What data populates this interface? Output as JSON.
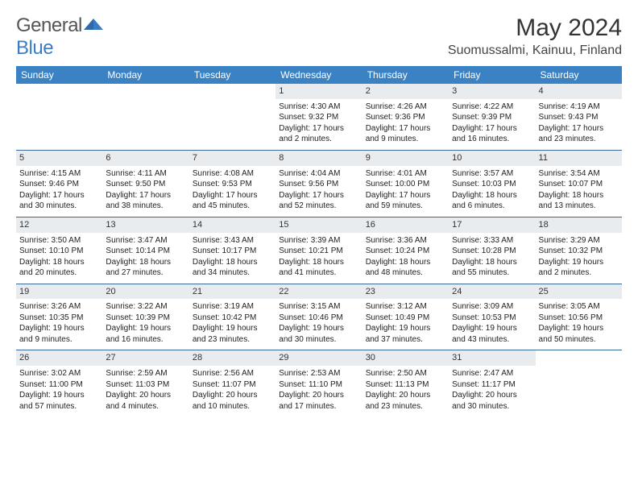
{
  "brand": {
    "name_part1": "General",
    "name_part2": "Blue",
    "logo_color": "#3b7dc4"
  },
  "title": "May 2024",
  "location": "Suomussalmi, Kainuu, Finland",
  "header_bg": "#3b82c4",
  "daynum_bg": "#e9ecef",
  "sep_color": "#3b6a9a",
  "day_headers": [
    "Sunday",
    "Monday",
    "Tuesday",
    "Wednesday",
    "Thursday",
    "Friday",
    "Saturday"
  ],
  "weeks": [
    [
      null,
      null,
      null,
      {
        "d": "1",
        "sr": "Sunrise: 4:30 AM",
        "ss": "Sunset: 9:32 PM",
        "dl": "Daylight: 17 hours and 2 minutes."
      },
      {
        "d": "2",
        "sr": "Sunrise: 4:26 AM",
        "ss": "Sunset: 9:36 PM",
        "dl": "Daylight: 17 hours and 9 minutes."
      },
      {
        "d": "3",
        "sr": "Sunrise: 4:22 AM",
        "ss": "Sunset: 9:39 PM",
        "dl": "Daylight: 17 hours and 16 minutes."
      },
      {
        "d": "4",
        "sr": "Sunrise: 4:19 AM",
        "ss": "Sunset: 9:43 PM",
        "dl": "Daylight: 17 hours and 23 minutes."
      }
    ],
    [
      {
        "d": "5",
        "sr": "Sunrise: 4:15 AM",
        "ss": "Sunset: 9:46 PM",
        "dl": "Daylight: 17 hours and 30 minutes."
      },
      {
        "d": "6",
        "sr": "Sunrise: 4:11 AM",
        "ss": "Sunset: 9:50 PM",
        "dl": "Daylight: 17 hours and 38 minutes."
      },
      {
        "d": "7",
        "sr": "Sunrise: 4:08 AM",
        "ss": "Sunset: 9:53 PM",
        "dl": "Daylight: 17 hours and 45 minutes."
      },
      {
        "d": "8",
        "sr": "Sunrise: 4:04 AM",
        "ss": "Sunset: 9:56 PM",
        "dl": "Daylight: 17 hours and 52 minutes."
      },
      {
        "d": "9",
        "sr": "Sunrise: 4:01 AM",
        "ss": "Sunset: 10:00 PM",
        "dl": "Daylight: 17 hours and 59 minutes."
      },
      {
        "d": "10",
        "sr": "Sunrise: 3:57 AM",
        "ss": "Sunset: 10:03 PM",
        "dl": "Daylight: 18 hours and 6 minutes."
      },
      {
        "d": "11",
        "sr": "Sunrise: 3:54 AM",
        "ss": "Sunset: 10:07 PM",
        "dl": "Daylight: 18 hours and 13 minutes."
      }
    ],
    [
      {
        "d": "12",
        "sr": "Sunrise: 3:50 AM",
        "ss": "Sunset: 10:10 PM",
        "dl": "Daylight: 18 hours and 20 minutes."
      },
      {
        "d": "13",
        "sr": "Sunrise: 3:47 AM",
        "ss": "Sunset: 10:14 PM",
        "dl": "Daylight: 18 hours and 27 minutes."
      },
      {
        "d": "14",
        "sr": "Sunrise: 3:43 AM",
        "ss": "Sunset: 10:17 PM",
        "dl": "Daylight: 18 hours and 34 minutes."
      },
      {
        "d": "15",
        "sr": "Sunrise: 3:39 AM",
        "ss": "Sunset: 10:21 PM",
        "dl": "Daylight: 18 hours and 41 minutes."
      },
      {
        "d": "16",
        "sr": "Sunrise: 3:36 AM",
        "ss": "Sunset: 10:24 PM",
        "dl": "Daylight: 18 hours and 48 minutes."
      },
      {
        "d": "17",
        "sr": "Sunrise: 3:33 AM",
        "ss": "Sunset: 10:28 PM",
        "dl": "Daylight: 18 hours and 55 minutes."
      },
      {
        "d": "18",
        "sr": "Sunrise: 3:29 AM",
        "ss": "Sunset: 10:32 PM",
        "dl": "Daylight: 19 hours and 2 minutes."
      }
    ],
    [
      {
        "d": "19",
        "sr": "Sunrise: 3:26 AM",
        "ss": "Sunset: 10:35 PM",
        "dl": "Daylight: 19 hours and 9 minutes."
      },
      {
        "d": "20",
        "sr": "Sunrise: 3:22 AM",
        "ss": "Sunset: 10:39 PM",
        "dl": "Daylight: 19 hours and 16 minutes."
      },
      {
        "d": "21",
        "sr": "Sunrise: 3:19 AM",
        "ss": "Sunset: 10:42 PM",
        "dl": "Daylight: 19 hours and 23 minutes."
      },
      {
        "d": "22",
        "sr": "Sunrise: 3:15 AM",
        "ss": "Sunset: 10:46 PM",
        "dl": "Daylight: 19 hours and 30 minutes."
      },
      {
        "d": "23",
        "sr": "Sunrise: 3:12 AM",
        "ss": "Sunset: 10:49 PM",
        "dl": "Daylight: 19 hours and 37 minutes."
      },
      {
        "d": "24",
        "sr": "Sunrise: 3:09 AM",
        "ss": "Sunset: 10:53 PM",
        "dl": "Daylight: 19 hours and 43 minutes."
      },
      {
        "d": "25",
        "sr": "Sunrise: 3:05 AM",
        "ss": "Sunset: 10:56 PM",
        "dl": "Daylight: 19 hours and 50 minutes."
      }
    ],
    [
      {
        "d": "26",
        "sr": "Sunrise: 3:02 AM",
        "ss": "Sunset: 11:00 PM",
        "dl": "Daylight: 19 hours and 57 minutes."
      },
      {
        "d": "27",
        "sr": "Sunrise: 2:59 AM",
        "ss": "Sunset: 11:03 PM",
        "dl": "Daylight: 20 hours and 4 minutes."
      },
      {
        "d": "28",
        "sr": "Sunrise: 2:56 AM",
        "ss": "Sunset: 11:07 PM",
        "dl": "Daylight: 20 hours and 10 minutes."
      },
      {
        "d": "29",
        "sr": "Sunrise: 2:53 AM",
        "ss": "Sunset: 11:10 PM",
        "dl": "Daylight: 20 hours and 17 minutes."
      },
      {
        "d": "30",
        "sr": "Sunrise: 2:50 AM",
        "ss": "Sunset: 11:13 PM",
        "dl": "Daylight: 20 hours and 23 minutes."
      },
      {
        "d": "31",
        "sr": "Sunrise: 2:47 AM",
        "ss": "Sunset: 11:17 PM",
        "dl": "Daylight: 20 hours and 30 minutes."
      },
      null
    ]
  ]
}
